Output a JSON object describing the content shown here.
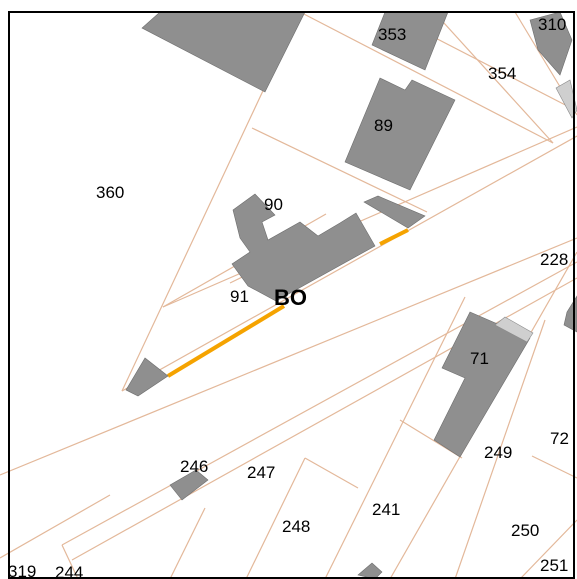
{
  "map": {
    "colors": {
      "background": "#ffffff",
      "parcel_boundary": "#e3b89a",
      "building": "#8f8f8f",
      "highlight": "#f5a300",
      "frame": "#000000"
    },
    "street_label": "BO",
    "parcel_labels": [
      {
        "id": "p353",
        "text": "353"
      },
      {
        "id": "p310",
        "text": "310"
      },
      {
        "id": "p354",
        "text": "354"
      },
      {
        "id": "p89",
        "text": "89"
      },
      {
        "id": "p360",
        "text": "360"
      },
      {
        "id": "p90",
        "text": "90"
      },
      {
        "id": "p91",
        "text": "91"
      },
      {
        "id": "p228",
        "text": "228"
      },
      {
        "id": "p71",
        "text": "71"
      },
      {
        "id": "p72",
        "text": "72"
      },
      {
        "id": "p249",
        "text": "249"
      },
      {
        "id": "p246",
        "text": "246"
      },
      {
        "id": "p247",
        "text": "247"
      },
      {
        "id": "p241",
        "text": "241"
      },
      {
        "id": "p248",
        "text": "248"
      },
      {
        "id": "p250",
        "text": "250"
      },
      {
        "id": "p251",
        "text": "251"
      },
      {
        "id": "p319",
        "text": "319"
      },
      {
        "id": "p244",
        "text": "244"
      }
    ]
  }
}
